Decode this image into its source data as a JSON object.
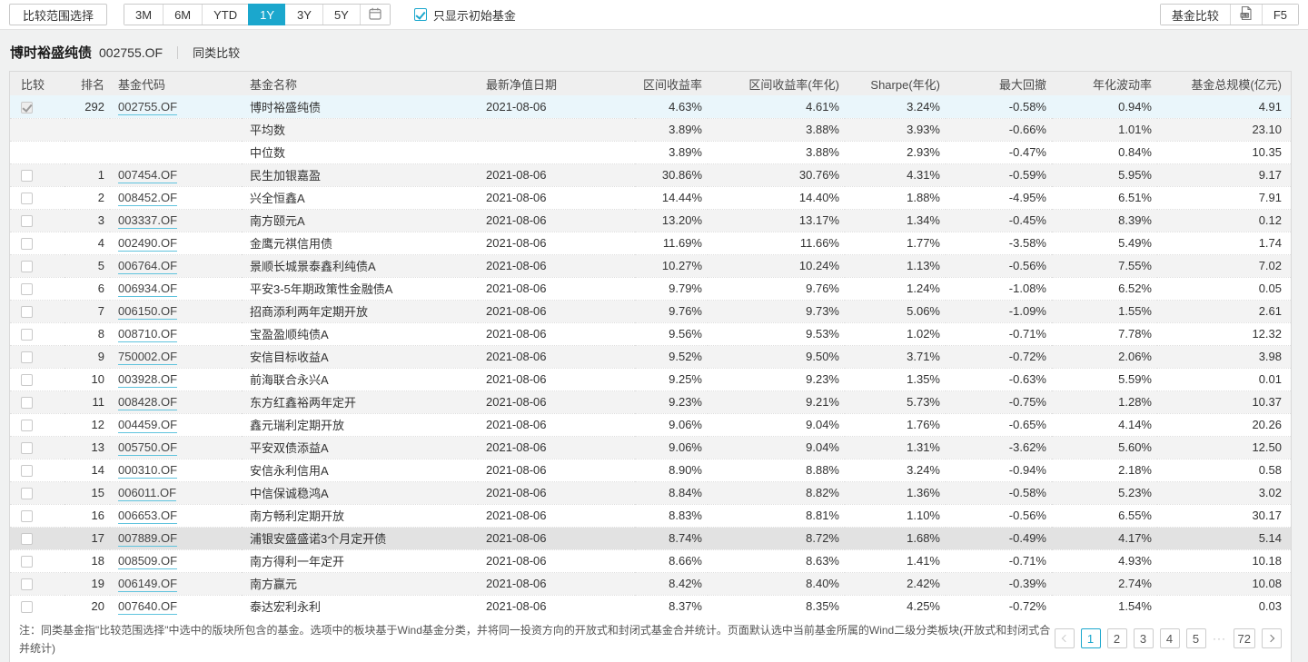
{
  "colors": {
    "accent": "#1ba7cd",
    "page-bg": "#f0f1f1",
    "stripe": "#f3f3f3",
    "current-row": "#eaf6fb",
    "highlight-row": "#e2e2e2",
    "link-underline": "#5fc3dd"
  },
  "toolbar": {
    "range_select_label": "比较范围选择",
    "periods": [
      "3M",
      "6M",
      "YTD",
      "1Y",
      "3Y",
      "5Y"
    ],
    "selected_period": "1Y",
    "checkbox_label": "只显示初始基金",
    "checkbox_checked": true,
    "fund_compare_label": "基金比较",
    "refresh_label": "F5"
  },
  "header": {
    "fund_name": "博时裕盛纯债",
    "fund_code": "002755.OF",
    "tab_label": "同类比较"
  },
  "table": {
    "columns": [
      "比较",
      "排名",
      "基金代码",
      "基金名称",
      "最新净值日期",
      "区间收益率",
      "区间收益率(年化)",
      "Sharpe(年化)",
      "最大回撤",
      "年化波动率",
      "基金总规模(亿元)"
    ],
    "current_fund_row": {
      "rank": "292",
      "code": "002755.OF",
      "name": "博时裕盛纯债",
      "nav_date": "2021-08-06",
      "values": [
        "4.63%",
        "4.61%",
        "3.24%",
        "-0.58%",
        "0.94%",
        "4.91"
      ],
      "checked": true
    },
    "summary_rows": [
      {
        "name": "平均数",
        "values": [
          "3.89%",
          "3.88%",
          "3.93%",
          "-0.66%",
          "1.01%",
          "23.10"
        ]
      },
      {
        "name": "中位数",
        "values": [
          "3.89%",
          "3.88%",
          "2.93%",
          "-0.47%",
          "0.84%",
          "10.35"
        ]
      }
    ],
    "rows": [
      {
        "rank": "1",
        "code": "007454.OF",
        "name": "民生加银嘉盈",
        "nav_date": "2021-08-06",
        "values": [
          "30.86%",
          "30.76%",
          "4.31%",
          "-0.59%",
          "5.95%",
          "9.17"
        ]
      },
      {
        "rank": "2",
        "code": "008452.OF",
        "name": "兴全恒鑫A",
        "nav_date": "2021-08-06",
        "values": [
          "14.44%",
          "14.40%",
          "1.88%",
          "-4.95%",
          "6.51%",
          "7.91"
        ]
      },
      {
        "rank": "3",
        "code": "003337.OF",
        "name": "南方颐元A",
        "nav_date": "2021-08-06",
        "values": [
          "13.20%",
          "13.17%",
          "1.34%",
          "-0.45%",
          "8.39%",
          "0.12"
        ]
      },
      {
        "rank": "4",
        "code": "002490.OF",
        "name": "金鹰元祺信用债",
        "nav_date": "2021-08-06",
        "values": [
          "11.69%",
          "11.66%",
          "1.77%",
          "-3.58%",
          "5.49%",
          "1.74"
        ]
      },
      {
        "rank": "5",
        "code": "006764.OF",
        "name": "景顺长城景泰鑫利纯债A",
        "nav_date": "2021-08-06",
        "values": [
          "10.27%",
          "10.24%",
          "1.13%",
          "-0.56%",
          "7.55%",
          "7.02"
        ]
      },
      {
        "rank": "6",
        "code": "006934.OF",
        "name": "平安3-5年期政策性金融债A",
        "nav_date": "2021-08-06",
        "values": [
          "9.79%",
          "9.76%",
          "1.24%",
          "-1.08%",
          "6.52%",
          "0.05"
        ]
      },
      {
        "rank": "7",
        "code": "006150.OF",
        "name": "招商添利两年定期开放",
        "nav_date": "2021-08-06",
        "values": [
          "9.76%",
          "9.73%",
          "5.06%",
          "-1.09%",
          "1.55%",
          "2.61"
        ]
      },
      {
        "rank": "8",
        "code": "008710.OF",
        "name": "宝盈盈顺纯债A",
        "nav_date": "2021-08-06",
        "values": [
          "9.56%",
          "9.53%",
          "1.02%",
          "-0.71%",
          "7.78%",
          "12.32"
        ]
      },
      {
        "rank": "9",
        "code": "750002.OF",
        "name": "安信目标收益A",
        "nav_date": "2021-08-06",
        "values": [
          "9.52%",
          "9.50%",
          "3.71%",
          "-0.72%",
          "2.06%",
          "3.98"
        ]
      },
      {
        "rank": "10",
        "code": "003928.OF",
        "name": "前海联合永兴A",
        "nav_date": "2021-08-06",
        "values": [
          "9.25%",
          "9.23%",
          "1.35%",
          "-0.63%",
          "5.59%",
          "0.01"
        ]
      },
      {
        "rank": "11",
        "code": "008428.OF",
        "name": "东方红鑫裕两年定开",
        "nav_date": "2021-08-06",
        "values": [
          "9.23%",
          "9.21%",
          "5.73%",
          "-0.75%",
          "1.28%",
          "10.37"
        ]
      },
      {
        "rank": "12",
        "code": "004459.OF",
        "name": "鑫元瑞利定期开放",
        "nav_date": "2021-08-06",
        "values": [
          "9.06%",
          "9.04%",
          "1.76%",
          "-0.65%",
          "4.14%",
          "20.26"
        ]
      },
      {
        "rank": "13",
        "code": "005750.OF",
        "name": "平安双债添益A",
        "nav_date": "2021-08-06",
        "values": [
          "9.06%",
          "9.04%",
          "1.31%",
          "-3.62%",
          "5.60%",
          "12.50"
        ]
      },
      {
        "rank": "14",
        "code": "000310.OF",
        "name": "安信永利信用A",
        "nav_date": "2021-08-06",
        "values": [
          "8.90%",
          "8.88%",
          "3.24%",
          "-0.94%",
          "2.18%",
          "0.58"
        ]
      },
      {
        "rank": "15",
        "code": "006011.OF",
        "name": "中信保诚稳鸿A",
        "nav_date": "2021-08-06",
        "values": [
          "8.84%",
          "8.82%",
          "1.36%",
          "-0.58%",
          "5.23%",
          "3.02"
        ]
      },
      {
        "rank": "16",
        "code": "006653.OF",
        "name": "南方畅利定期开放",
        "nav_date": "2021-08-06",
        "values": [
          "8.83%",
          "8.81%",
          "1.10%",
          "-0.56%",
          "6.55%",
          "30.17"
        ]
      },
      {
        "rank": "17",
        "code": "007889.OF",
        "name": "浦银安盛盛诺3个月定开债",
        "nav_date": "2021-08-06",
        "values": [
          "8.74%",
          "8.72%",
          "1.68%",
          "-0.49%",
          "4.17%",
          "5.14"
        ],
        "highlighted": true
      },
      {
        "rank": "18",
        "code": "008509.OF",
        "name": "南方得利一年定开",
        "nav_date": "2021-08-06",
        "values": [
          "8.66%",
          "8.63%",
          "1.41%",
          "-0.71%",
          "4.93%",
          "10.18"
        ]
      },
      {
        "rank": "19",
        "code": "006149.OF",
        "name": "南方赢元",
        "nav_date": "2021-08-06",
        "values": [
          "8.42%",
          "8.40%",
          "2.42%",
          "-0.39%",
          "2.74%",
          "10.08"
        ]
      },
      {
        "rank": "20",
        "code": "007640.OF",
        "name": "泰达宏利永利",
        "nav_date": "2021-08-06",
        "values": [
          "8.37%",
          "8.35%",
          "4.25%",
          "-0.72%",
          "1.54%",
          "0.03"
        ]
      }
    ]
  },
  "footnote": "注：同类基金指\"比较范围选择\"中选中的版块所包含的基金。选项中的板块基于Wind基金分类，并将同一投资方向的开放式和封闭式基金合并统计。页面默认选中当前基金所属的Wind二级分类板块(开放式和封闭式合并统计)",
  "pagination": {
    "pages": [
      "1",
      "2",
      "3",
      "4",
      "5",
      "...",
      "72"
    ],
    "active_page": "1",
    "ellipsis_label": "...",
    "prev_enabled": false,
    "next_enabled": true
  }
}
